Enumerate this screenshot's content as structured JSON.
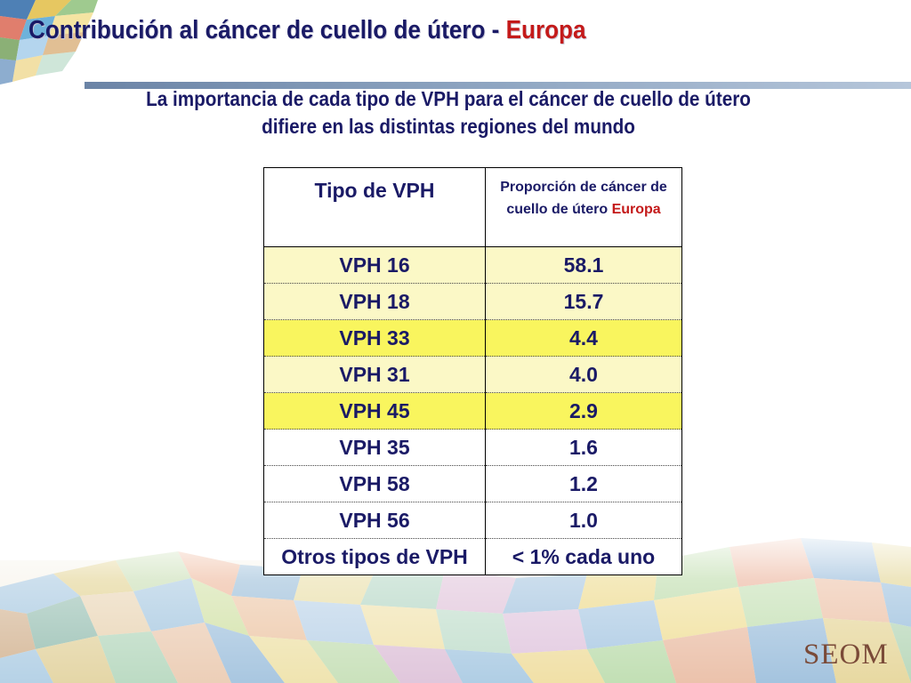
{
  "slide": {
    "title_prefix": "Contribución al cáncer de cuello de útero - ",
    "title_accent": "Europa",
    "subtitle_line1": "La importancia de cada tipo de VPH para el cáncer de cuello de útero",
    "subtitle_line2": "difiere en las distintas regiones del mundo",
    "logo_text": "SEOM"
  },
  "table": {
    "header_col1": "Tipo de VPH",
    "header_col2_line1": "Proporción de cáncer de",
    "header_col2_line2": "cuello de útero ",
    "header_col2_accent": "Europa",
    "rows": [
      {
        "type": "VPH 16",
        "value": "58.1",
        "highlight": "pale"
      },
      {
        "type": "VPH 18",
        "value": "15.7",
        "highlight": "pale"
      },
      {
        "type": "VPH 33",
        "value": "4.4",
        "highlight": "bright"
      },
      {
        "type": "VPH 31",
        "value": "4.0",
        "highlight": "pale"
      },
      {
        "type": "VPH 45",
        "value": "2.9",
        "highlight": "bright"
      },
      {
        "type": "VPH 35",
        "value": "1.6",
        "highlight": "none"
      },
      {
        "type": "VPH 58",
        "value": "1.2",
        "highlight": "none"
      },
      {
        "type": "VPH 56",
        "value": "1.0",
        "highlight": "none"
      },
      {
        "type": "Otros tipos de VPH",
        "value": "< 1% cada uno",
        "highlight": "none"
      }
    ]
  },
  "colors": {
    "title": "#1a1a66",
    "accent_red": "#c41a1a",
    "highlight_pale": "#fbf8c6",
    "highlight_bright": "#f9f55e",
    "logo": "#7a4a38"
  }
}
